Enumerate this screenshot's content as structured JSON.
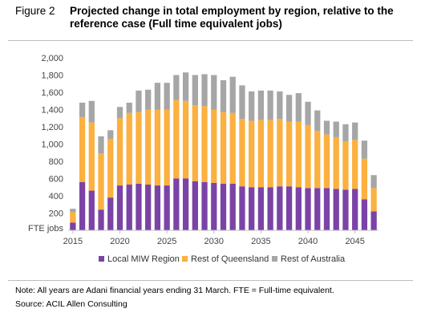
{
  "figure": {
    "label": "Figure 2",
    "title": "Projected change in total employment by region, relative to the reference case (Full time equivalent jobs)"
  },
  "chart_data": {
    "type": "bar",
    "stacked": true,
    "x": [
      2015,
      2016,
      2017,
      2018,
      2019,
      2020,
      2021,
      2022,
      2023,
      2024,
      2025,
      2026,
      2027,
      2028,
      2029,
      2030,
      2031,
      2032,
      2033,
      2034,
      2035,
      2036,
      2037,
      2038,
      2039,
      2040,
      2041,
      2042,
      2043,
      2044,
      2045,
      2046,
      2047
    ],
    "ylabel": "FTE jobs",
    "ylim": [
      0,
      2000
    ],
    "yticks": [
      200,
      400,
      600,
      800,
      1000,
      1200,
      1400,
      1600,
      1800,
      2000
    ],
    "ytick_labels": [
      "200",
      "400",
      "600",
      "800",
      "1,000",
      "1,200",
      "1,400",
      "1,600",
      "1,800",
      "2,000"
    ],
    "xtick_values": [
      2015,
      2020,
      2025,
      2030,
      2035,
      2040,
      2045
    ],
    "xtick_labels": [
      "2015",
      "2020",
      "2025",
      "2030",
      "2035",
      "2040",
      "2045"
    ],
    "legend_position": "bottom",
    "grid": false,
    "series": [
      {
        "name": "Local MIW Region",
        "color": "#7b43a6",
        "values": [
          90,
          560,
          460,
          240,
          380,
          520,
          530,
          540,
          530,
          520,
          520,
          600,
          600,
          570,
          560,
          550,
          540,
          540,
          510,
          500,
          500,
          500,
          510,
          510,
          500,
          490,
          490,
          490,
          480,
          470,
          480,
          360,
          220
        ]
      },
      {
        "name": "Rest of Queensland",
        "color": "#fbb040",
        "values": [
          120,
          750,
          790,
          650,
          680,
          780,
          830,
          830,
          870,
          880,
          880,
          910,
          900,
          880,
          880,
          850,
          830,
          820,
          780,
          770,
          780,
          780,
          780,
          750,
          760,
          730,
          660,
          620,
          600,
          560,
          570,
          470,
          270
        ]
      },
      {
        "name": "Rest of Australia",
        "color": "#a6a6a6",
        "values": [
          40,
          170,
          250,
          200,
          100,
          130,
          120,
          250,
          230,
          310,
          310,
          290,
          330,
          350,
          370,
          400,
          370,
          420,
          390,
          340,
          340,
          340,
          320,
          310,
          330,
          270,
          240,
          160,
          180,
          200,
          200,
          210,
          150
        ]
      }
    ]
  },
  "footer": {
    "note": "Note: All years are Adani financial years ending 31 March. FTE = Full-time equivalent.",
    "source": "Source: ACIL Allen Consulting"
  }
}
